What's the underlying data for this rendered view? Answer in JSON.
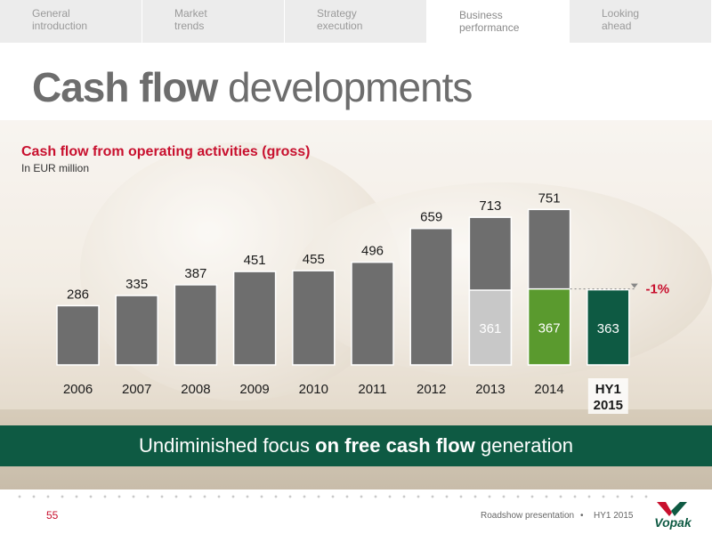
{
  "nav": {
    "tabs": [
      {
        "line1": "General",
        "line2": "introduction",
        "active": false
      },
      {
        "line1": "Market",
        "line2": "trends",
        "active": false
      },
      {
        "line1": "Strategy",
        "line2": "execution",
        "active": false
      },
      {
        "line1": "Business",
        "line2": "performance",
        "active": true
      },
      {
        "line1": "Looking",
        "line2": "ahead",
        "active": false
      }
    ]
  },
  "title": {
    "bold": "Cash flow",
    "rest": " developments"
  },
  "chart_data": {
    "type": "bar",
    "title": "Cash flow from operating activities (gross)",
    "subtitle": "In EUR million",
    "categories": [
      "2006",
      "2007",
      "2008",
      "2009",
      "2010",
      "2011",
      "2012",
      "2013",
      "2014",
      "HY1\n2015"
    ],
    "values": [
      286,
      335,
      387,
      451,
      455,
      496,
      659,
      713,
      751,
      null
    ],
    "half_year_values": {
      "2013": 361,
      "2014": 367,
      "HY1\n2015": 363
    },
    "annotation": "-1%",
    "ylim": [
      0,
      800
    ],
    "colors": {
      "bar": "#6e6e6e",
      "half_2013": "#c8c8c8",
      "half_2014": "#5a9a2e",
      "hy1_2015": "#0e5a43",
      "annotation": "#c8102e"
    }
  },
  "banner": {
    "pre": "Undiminished focus ",
    "bold": "on free cash flow",
    "post": " generation"
  },
  "footer": {
    "page": "55",
    "presentation": "Roadshow presentation",
    "separator": "•",
    "period": "HY1 2015",
    "logo_text": "Vopak"
  }
}
